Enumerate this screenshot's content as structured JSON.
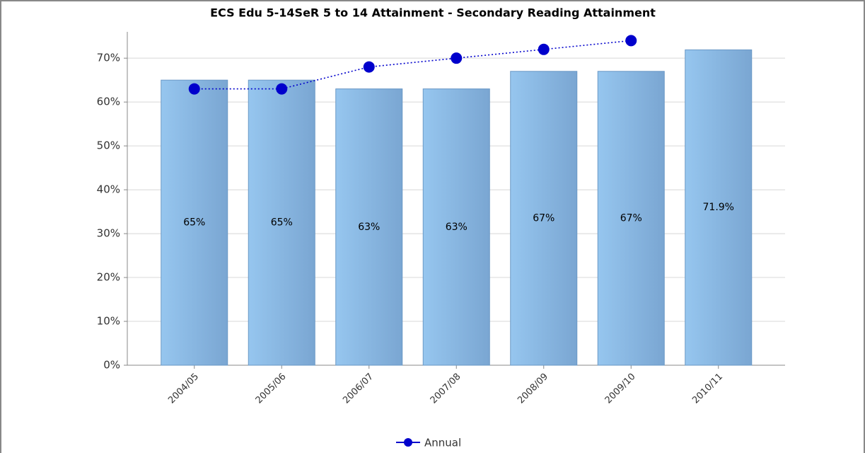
{
  "chart_data": {
    "type": "bar",
    "title": "ECS Edu 5-14SeR 5 to 14 Attainment - Secondary Reading Attainment",
    "categories": [
      "2004/05",
      "2005/06",
      "2006/07",
      "2007/08",
      "2008/09",
      "2009/10",
      "2010/11"
    ],
    "series": [
      {
        "type": "bar",
        "color": "#8cbde8",
        "values": [
          65,
          65,
          63,
          63,
          67,
          67,
          71.9
        ],
        "value_labels": [
          "65%",
          "65%",
          "63%",
          "63%",
          "67%",
          "67%",
          "71.9%"
        ]
      },
      {
        "type": "line",
        "name": "Annual",
        "color": "#0000cc",
        "values": [
          63,
          63,
          68,
          70,
          72,
          74,
          null
        ]
      }
    ],
    "ylim": [
      0,
      76
    ],
    "yticks": [
      {
        "value": 0,
        "label": "0%"
      },
      {
        "value": 10,
        "label": "10%"
      },
      {
        "value": 20,
        "label": "20%"
      },
      {
        "value": 30,
        "label": "30%"
      },
      {
        "value": 40,
        "label": "40%"
      },
      {
        "value": 50,
        "label": "50%"
      },
      {
        "value": 60,
        "label": "60%"
      },
      {
        "value": 70,
        "label": "70%"
      }
    ],
    "grid": true,
    "legend": "bottom"
  }
}
